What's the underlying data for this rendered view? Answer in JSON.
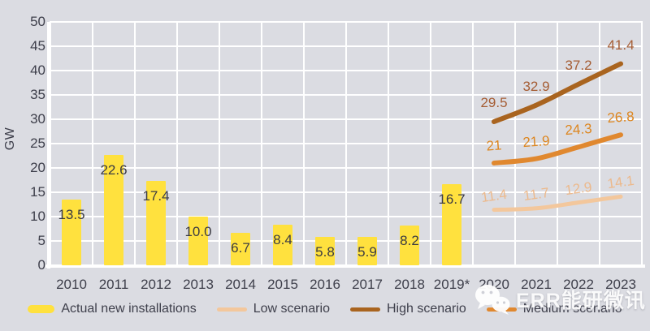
{
  "chart_data": {
    "type": "bar",
    "title": "",
    "ylabel": "GW",
    "xlabel": "",
    "ylim": [
      0,
      50
    ],
    "yticks": [
      0,
      5,
      10,
      15,
      20,
      25,
      30,
      35,
      40,
      45,
      50
    ],
    "grid": true,
    "categories": [
      "2010",
      "2011",
      "2012",
      "2013",
      "2014",
      "2015",
      "2016",
      "2017",
      "2018",
      "2019*",
      "2020",
      "2021",
      "2022",
      "2023"
    ],
    "bars": {
      "name": "Actual new installations",
      "color": "#ffe13e",
      "values": [
        13.5,
        22.6,
        17.4,
        10.0,
        6.7,
        8.4,
        5.8,
        5.9,
        8.2,
        16.7,
        null,
        null,
        null,
        null
      ],
      "labels": [
        "13.5",
        "22.6",
        "17.4",
        "10.0",
        "6.7",
        "8.4",
        "5.8",
        "5.9",
        "8.2",
        "16.7"
      ]
    },
    "series": [
      {
        "key": "low",
        "name": "Low scenario",
        "type": "line",
        "color": "#f3c79c",
        "label_color": "#ecb98c",
        "x": [
          "2020",
          "2021",
          "2022",
          "2023"
        ],
        "values": [
          11.4,
          11.7,
          12.9,
          14.1
        ],
        "labels": [
          "11.4",
          "11.7",
          "12.9",
          "14.1"
        ]
      },
      {
        "key": "high",
        "name": "High scenario",
        "type": "line",
        "color": "#a9641f",
        "label_color": "#a55d34",
        "x": [
          "2020",
          "2021",
          "2022",
          "2023"
        ],
        "values": [
          29.5,
          32.9,
          37.2,
          41.4
        ],
        "labels": [
          "29.5",
          "32.9",
          "37.2",
          "41.4"
        ]
      },
      {
        "key": "medium",
        "name": "Medium scenario",
        "type": "line",
        "color": "#e0882f",
        "label_color": "#dd861f",
        "x": [
          "2020",
          "2021",
          "2022",
          "2023"
        ],
        "values": [
          21,
          21.9,
          24.3,
          26.8
        ],
        "labels": [
          "21",
          "21.9",
          "24.3",
          "26.8"
        ]
      }
    ],
    "legend_position": "bottom"
  },
  "legend": {
    "items": [
      {
        "label": "Actual new installations",
        "swatch": "bar",
        "color": "#ffe13e"
      },
      {
        "label": "Low scenario",
        "swatch": "line",
        "color": "#f3c79c"
      },
      {
        "label": "High scenario",
        "swatch": "line",
        "color": "#a9641f"
      },
      {
        "label": "Medium scenario",
        "swatch": "line",
        "color": "#e0882f"
      }
    ]
  },
  "watermark": {
    "text": "ERR能研微讯",
    "icon": "wechat-icon"
  },
  "colors": {
    "background": "#dbdce2",
    "gridline": "#ffffff",
    "axis_text": "#3e3f4b",
    "bar_value_text": "#3b3b42"
  }
}
